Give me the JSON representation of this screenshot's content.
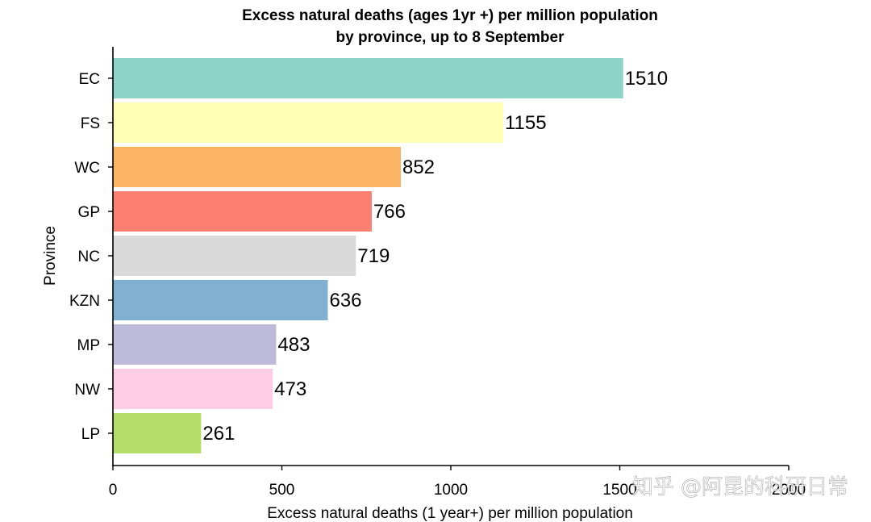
{
  "chart_data": {
    "type": "bar",
    "orientation": "horizontal",
    "title_lines": [
      "Excess natural deaths (ages 1yr +) per million population",
      "by province, up to 8 September"
    ],
    "xlabel": "Excess natural deaths (1 year+) per million population",
    "ylabel": "Province",
    "xlim": [
      0,
      2000
    ],
    "xticks": [
      "0",
      "500",
      "1000",
      "1500",
      "2000"
    ],
    "grid": false,
    "categories": [
      "EC",
      "FS",
      "WC",
      "GP",
      "NC",
      "KZN",
      "MP",
      "NW",
      "LP"
    ],
    "values": [
      1510,
      1155,
      852,
      766,
      719,
      636,
      483,
      473,
      261
    ],
    "colors": [
      "#8dd3c7",
      "#ffffb3",
      "#fdb462",
      "#fb8072",
      "#d9d9d9",
      "#80b1d3",
      "#bebada",
      "#fccde5",
      "#b3de69"
    ]
  },
  "watermark": "知乎 @阿昆的科研日常"
}
